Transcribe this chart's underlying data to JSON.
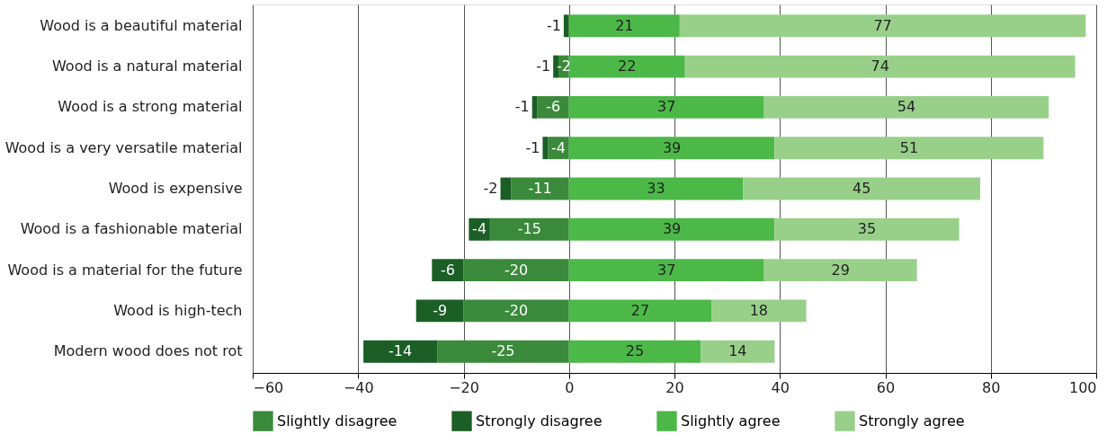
{
  "chart_data": {
    "type": "bar",
    "orientation": "horizontal",
    "stacked": true,
    "data_labels": true,
    "categories": [
      "Wood is a beautiful material",
      "Wood is a natural material",
      "Wood is a strong material",
      "Wood is a very versatile material",
      "Wood is expensive",
      "Wood is a fashionable material",
      "Wood is a material for the future",
      "Wood is high-tech",
      "Modern wood does not rot"
    ],
    "series": [
      {
        "name": "Slightly disagree",
        "color": "#3b8a3b",
        "values": [
          null,
          -2,
          -6,
          -4,
          -11,
          -15,
          -20,
          -20,
          -25
        ]
      },
      {
        "name": "Strongly disagree",
        "color": "#1b5e26",
        "values": [
          -1,
          -1,
          -1,
          -1,
          -2,
          -4,
          -6,
          -9,
          -14
        ]
      },
      {
        "name": "Slightly agree",
        "color": "#4cb848",
        "values": [
          21,
          22,
          37,
          39,
          33,
          39,
          37,
          27,
          25
        ]
      },
      {
        "name": "Strongly agree",
        "color": "#98d08a",
        "values": [
          77,
          74,
          54,
          51,
          45,
          35,
          29,
          18,
          14
        ]
      }
    ],
    "xlim": [
      -60,
      100
    ],
    "xticks": [
      -60,
      -40,
      -20,
      0,
      20,
      40,
      60,
      80,
      100
    ],
    "grid": "x",
    "legend": "bottom"
  }
}
